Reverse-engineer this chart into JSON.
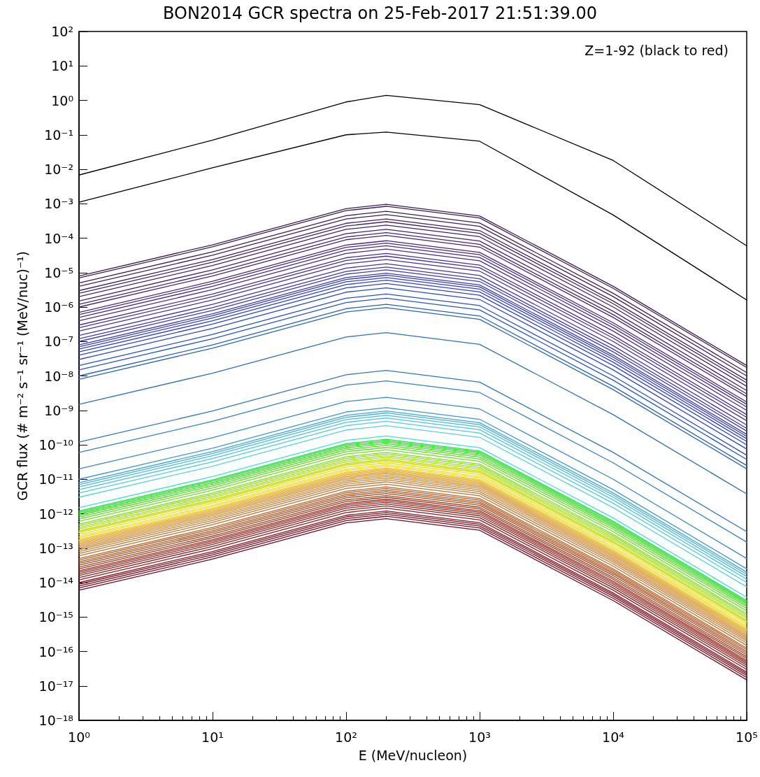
{
  "chart_data": {
    "type": "line",
    "title": "BON2014 GCR spectra on 25-Feb-2017 21:51:39.00",
    "xlabel": "E (MeV/nucleon)",
    "ylabel": "GCR flux (# m⁻² s⁻¹ sr⁻¹ (MeV/nuc)⁻¹)",
    "annotations": [
      "Z=1-92 (black to red)"
    ],
    "log": "xy",
    "grid": false,
    "marker": "none",
    "line_style": "solid",
    "x": [
      1,
      10,
      100,
      200,
      1000,
      10000,
      100000
    ],
    "xlim": [
      1,
      100000
    ],
    "xticks": [
      {
        "value": 1,
        "label": "10⁰"
      },
      {
        "value": 10,
        "label": "10¹"
      },
      {
        "value": 100,
        "label": "10²"
      },
      {
        "value": 1000,
        "label": "10³"
      },
      {
        "value": 10000,
        "label": "10⁴"
      },
      {
        "value": 100000,
        "label": "10⁵"
      }
    ],
    "ylim": [
      1e-18,
      100
    ],
    "yticks": [
      {
        "value": 1e-18,
        "label": "10⁻¹⁸"
      },
      {
        "value": 1e-17,
        "label": "10⁻¹⁷"
      },
      {
        "value": 1e-16,
        "label": "10⁻¹⁶"
      },
      {
        "value": 1e-15,
        "label": "10⁻¹⁵"
      },
      {
        "value": 1e-14,
        "label": "10⁻¹⁴"
      },
      {
        "value": 1e-13,
        "label": "10⁻¹³"
      },
      {
        "value": 1e-12,
        "label": "10⁻¹²"
      },
      {
        "value": 1e-11,
        "label": "10⁻¹¹"
      },
      {
        "value": 1e-10,
        "label": "10⁻¹⁰"
      },
      {
        "value": 1e-09,
        "label": "10⁻⁹"
      },
      {
        "value": 1e-08,
        "label": "10⁻⁸"
      },
      {
        "value": 1e-07,
        "label": "10⁻⁷"
      },
      {
        "value": 1e-06,
        "label": "10⁻⁶"
      },
      {
        "value": 1e-05,
        "label": "10⁻⁵"
      },
      {
        "value": 0.0001,
        "label": "10⁻⁴"
      },
      {
        "value": 0.001,
        "label": "10⁻³"
      },
      {
        "value": 0.01,
        "label": "10⁻²"
      },
      {
        "value": 0.1,
        "label": "10⁻¹"
      },
      {
        "value": 1,
        "label": "10⁰"
      },
      {
        "value": 10,
        "label": "10¹"
      },
      {
        "value": 100,
        "label": "10²"
      }
    ],
    "series": [
      {
        "color": "#000000",
        "values": [
          0.0068,
          0.07,
          0.9,
          1.4,
          0.75,
          0.018,
          6e-05
        ]
      },
      {
        "color": "#000000",
        "values": [
          0.0011,
          0.011,
          0.1,
          0.12,
          0.065,
          0.00047,
          1.6e-06
        ]
      },
      {
        "color": "#3c1e50",
        "values": [
          8e-06,
          6.4e-05,
          0.00072,
          0.00096,
          0.00044,
          4e-06,
          2e-08
        ]
      },
      {
        "color": "#3e1f55",
        "values": [
          7e-06,
          5.6e-05,
          0.00063,
          0.00084,
          0.000385,
          3.5e-06,
          1.75e-08
        ]
      },
      {
        "color": "#40205a",
        "values": [
          5e-06,
          4e-05,
          0.00045,
          0.0006,
          0.000275,
          2.5e-06,
          1.25e-08
        ]
      },
      {
        "color": "#42215f",
        "values": [
          4e-06,
          3.2e-05,
          0.00036,
          0.00048,
          0.00022,
          2e-06,
          1e-08
        ]
      },
      {
        "color": "#442264",
        "values": [
          3e-06,
          2.4e-05,
          0.00027,
          0.00036,
          0.000165,
          1.5e-06,
          7.5e-09
        ]
      },
      {
        "color": "#452369",
        "values": [
          2.5e-06,
          2e-05,
          0.000225,
          0.0003,
          0.0001375,
          1.25e-06,
          6.25e-09
        ]
      },
      {
        "color": "#46246e",
        "values": [
          2e-06,
          1.6e-05,
          0.00018,
          0.00024,
          0.00011,
          1e-06,
          5e-09
        ]
      },
      {
        "color": "#472573",
        "values": [
          1.5e-06,
          1.2e-05,
          0.000135,
          0.00018,
          8.25e-05,
          7.5e-07,
          3.75e-09
        ]
      },
      {
        "color": "#482678",
        "values": [
          1.2e-06,
          9.6e-06,
          0.000108,
          0.000144,
          6.6e-05,
          6e-07,
          3e-09
        ]
      },
      {
        "color": "#49277d",
        "values": [
          1e-06,
          8e-06,
          9e-05,
          0.00012,
          5.5e-05,
          5e-07,
          2.5e-09
        ]
      },
      {
        "color": "#4a2882",
        "values": [
          7e-07,
          5.6e-06,
          6.3e-05,
          8.4e-05,
          3.85e-05,
          3.5e-07,
          1.75e-09
        ]
      },
      {
        "color": "#4a2a88",
        "values": [
          6e-07,
          4.8e-06,
          5.4e-05,
          7.2e-05,
          3.3e-05,
          3e-07,
          1.5e-09
        ]
      },
      {
        "color": "#4a2c8e",
        "values": [
          5e-07,
          4e-06,
          4.5e-05,
          6e-05,
          2.75e-05,
          2.5e-07,
          1.25e-09
        ]
      },
      {
        "color": "#4a2e94",
        "values": [
          4e-07,
          3.2e-06,
          3.6e-05,
          4.8e-05,
          2.2e-05,
          2e-07,
          1e-09
        ]
      },
      {
        "color": "#4a309a",
        "values": [
          3e-07,
          2.4e-06,
          2.7e-05,
          3.6e-05,
          1.65e-05,
          1.5e-07,
          7.5e-10
        ]
      },
      {
        "color": "#4832a0",
        "values": [
          2.5e-07,
          2e-06,
          2.25e-05,
          3e-05,
          1.375e-05,
          1.25e-07,
          6.25e-10
        ]
      },
      {
        "color": "#4634a6",
        "values": [
          2e-07,
          1.6e-06,
          1.8e-05,
          2.4e-05,
          1.1e-05,
          1e-07,
          5e-10
        ]
      },
      {
        "color": "#4436ac",
        "values": [
          1.5e-07,
          1.2e-06,
          1.35e-05,
          1.8e-05,
          8.25e-06,
          7.5e-08,
          3.75e-10
        ]
      },
      {
        "color": "#4238b2",
        "values": [
          1.2e-07,
          9.6e-07,
          1.08e-05,
          1.44e-05,
          6.6e-06,
          6e-08,
          3e-10
        ]
      },
      {
        "color": "#403ab8",
        "values": [
          1e-07,
          8e-07,
          9e-06,
          1.2e-05,
          5.5e-06,
          5e-08,
          2.5e-10
        ]
      },
      {
        "color": "#3c3cbe",
        "values": [
          8e-08,
          6.4e-07,
          7.2e-06,
          9.6e-06,
          4.4e-06,
          4e-08,
          2e-10
        ]
      },
      {
        "color": "#383ec4",
        "values": [
          7e-08,
          5.6e-07,
          6.3e-06,
          8.4e-06,
          3.85e-06,
          3.5e-08,
          1.75e-10
        ]
      },
      {
        "color": "#3440ca",
        "values": [
          6e-08,
          4.8e-07,
          5.4e-06,
          7.2e-06,
          3.3e-06,
          3e-08,
          1.5e-10
        ]
      },
      {
        "color": "#3042d0",
        "values": [
          5e-08,
          4e-07,
          4.5e-06,
          6e-06,
          2.75e-06,
          2.5e-08,
          1.25e-10
        ]
      },
      {
        "color": "#2c44d4",
        "values": [
          4e-08,
          3.2e-07,
          3.6e-06,
          4.8e-06,
          2.2e-06,
          2e-08,
          1e-10
        ]
      },
      {
        "color": "#2848d8",
        "values": [
          3e-08,
          2.4e-07,
          2.7e-06,
          3.6e-06,
          1.65e-06,
          1.5e-08,
          7.5e-11
        ]
      },
      {
        "color": "#2850d0",
        "values": [
          2e-08,
          1.6e-07,
          1.8e-06,
          2.4e-06,
          1.1e-06,
          1e-08,
          5e-11
        ]
      },
      {
        "color": "#2858c8",
        "values": [
          1.5e-08,
          1.2e-07,
          1.35e-06,
          1.8e-06,
          8.25e-07,
          7.5e-09,
          3.75e-11
        ]
      },
      {
        "color": "#2860c0",
        "values": [
          1e-08,
          8e-08,
          9e-07,
          1.2e-06,
          5.5e-07,
          5e-09,
          2.5e-11
        ]
      },
      {
        "color": "#2868c0",
        "values": [
          8e-09,
          6.4e-08,
          7.2e-07,
          9.6e-07,
          4.4e-07,
          4e-09,
          2e-11
        ]
      },
      {
        "color": "#2c70c0",
        "values": [
          1.5e-09,
          1.2e-08,
          1.35e-07,
          1.8e-07,
          8.25e-08,
          7.5e-10,
          3.75e-12
        ]
      },
      {
        "color": "#3078c4",
        "values": [
          1.2e-10,
          9.6e-10,
          1.08e-08,
          1.44e-08,
          6.6e-09,
          6e-11,
          3e-13
        ]
      },
      {
        "color": "#3480c8",
        "values": [
          6e-11,
          4.8e-10,
          5.4e-09,
          7.2e-09,
          3.3e-09,
          3e-11,
          1.5e-13
        ]
      },
      {
        "color": "#3888cc",
        "values": [
          2e-11,
          1.6e-10,
          1.8e-09,
          2.4e-09,
          1.1e-09,
          1e-11,
          5e-14
        ]
      },
      {
        "color": "#3c98d8",
        "values": [
          1e-11,
          8e-11,
          9e-10,
          1.2e-09,
          5.5e-10,
          5e-12,
          2.5e-14
        ]
      },
      {
        "color": "#40a4dc",
        "values": [
          8e-12,
          6.4e-11,
          7.2e-10,
          9.6e-10,
          4.4e-10,
          4e-12,
          2e-14
        ]
      },
      {
        "color": "#44b0e0",
        "values": [
          7e-12,
          5.6e-11,
          6.3e-10,
          8.4e-10,
          3.85e-10,
          3.5e-12,
          1.75e-14
        ]
      },
      {
        "color": "#48bce0",
        "values": [
          6e-12,
          4.8e-11,
          5.4e-10,
          7.2e-10,
          3.3e-10,
          3e-12,
          1.5e-14
        ]
      },
      {
        "color": "#4cc4e0",
        "values": [
          5e-12,
          4e-11,
          4.5e-10,
          6e-10,
          2.75e-10,
          2.5e-12,
          1.25e-14
        ]
      },
      {
        "color": "#50cce0",
        "values": [
          4e-12,
          3.2e-11,
          3.6e-10,
          4.8e-10,
          2.2e-10,
          2e-12,
          1e-14
        ]
      },
      {
        "color": "#54d4e0",
        "values": [
          3e-12,
          2.4e-11,
          2.7e-10,
          3.6e-10,
          1.65e-10,
          1.5e-12,
          7.5e-15
        ]
      },
      {
        "color": "#40e0d8",
        "values": [
          1.5e-12,
          1.2e-11,
          1.35e-10,
          1.8e-10,
          8.25e-11,
          7.5e-13,
          3.75e-15
        ]
      },
      {
        "color": "#20e040",
        "values": [
          1.2e-12,
          9.6e-12,
          1.08e-10,
          1.44e-10,
          6.6e-11,
          6e-13,
          3e-15
        ]
      },
      {
        "color": "#28e030",
        "values": [
          1.1e-12,
          8.8e-12,
          9.9e-11,
          1.32e-10,
          6.05e-11,
          5.5e-13,
          2.75e-15
        ]
      },
      {
        "color": "#30e020",
        "values": [
          1e-12,
          8e-12,
          9e-11,
          1.2e-10,
          5.5e-11,
          5e-13,
          2.5e-15
        ]
      },
      {
        "color": "#40e020",
        "values": [
          9e-13,
          7.2e-12,
          8.1e-11,
          1.08e-10,
          4.95e-11,
          4.5e-13,
          2.25e-15
        ]
      },
      {
        "color": "#50e020",
        "values": [
          8e-13,
          6.4e-12,
          7.2e-11,
          9.6e-11,
          4.4e-11,
          4e-13,
          2e-15
        ]
      },
      {
        "color": "#60e020",
        "values": [
          7e-13,
          5.6e-12,
          6.3e-11,
          8.4e-11,
          3.85e-11,
          3.5e-13,
          1.75e-15
        ]
      },
      {
        "color": "#70e020",
        "values": [
          6e-13,
          4.8e-12,
          5.4e-11,
          7.2e-11,
          3.3e-11,
          3e-13,
          1.5e-15
        ]
      },
      {
        "color": "#80e020",
        "values": [
          5e-13,
          4e-12,
          4.5e-11,
          6e-11,
          2.75e-11,
          2.5e-13,
          1.25e-15
        ]
      },
      {
        "color": "#90e020",
        "values": [
          4.5e-13,
          3.6e-12,
          4.05e-11,
          5.4e-11,
          2.475e-11,
          2.25e-13,
          1.125e-15
        ]
      },
      {
        "color": "#a0e020",
        "values": [
          4e-13,
          3.2e-12,
          3.6e-11,
          4.8e-11,
          2.2e-11,
          2e-13,
          1e-15
        ]
      },
      {
        "color": "#b0e020",
        "values": [
          3.6e-13,
          2.88e-12,
          3.24e-11,
          4.32e-11,
          1.98e-11,
          1.8e-13,
          9e-16
        ]
      },
      {
        "color": "#c0e020",
        "values": [
          3.2e-13,
          2.56e-12,
          2.88e-11,
          3.84e-11,
          1.76e-11,
          1.6e-13,
          8e-16
        ]
      },
      {
        "color": "#d0e020",
        "values": [
          3e-13,
          2.4e-12,
          2.7e-11,
          3.6e-11,
          1.65e-11,
          1.5e-13,
          7.5e-16
        ]
      },
      {
        "color": "#e0e020",
        "values": [
          2.8e-13,
          2.24e-12,
          2.52e-11,
          3.36e-11,
          1.54e-11,
          1.4e-13,
          7e-16
        ]
      },
      {
        "color": "#e8e020",
        "values": [
          2.5e-13,
          2e-12,
          2.25e-11,
          3e-11,
          1.375e-11,
          1.25e-13,
          6.25e-16
        ]
      },
      {
        "color": "#f0e028",
        "values": [
          2.2e-13,
          1.76e-12,
          1.98e-11,
          2.64e-11,
          1.21e-11,
          1.1e-13,
          5.5e-16
        ]
      },
      {
        "color": "#f0d830",
        "values": [
          2e-13,
          1.6e-12,
          1.8e-11,
          2.4e-11,
          1.1e-11,
          1e-13,
          5e-16
        ]
      },
      {
        "color": "#f0d038",
        "values": [
          1.8e-13,
          1.44e-12,
          1.62e-11,
          2.16e-11,
          9.9e-12,
          9e-14,
          4.5e-16
        ]
      },
      {
        "color": "#f0c840",
        "values": [
          1.7e-13,
          1.36e-12,
          1.53e-11,
          2.04e-11,
          9.35e-12,
          8.5e-14,
          4.25e-16
        ]
      },
      {
        "color": "#e8c048",
        "values": [
          1.6e-13,
          1.28e-12,
          1.44e-11,
          1.92e-11,
          8.8e-12,
          8e-14,
          4e-16
        ]
      },
      {
        "color": "#e0b850",
        "values": [
          1.5e-13,
          1.2e-12,
          1.35e-11,
          1.8e-11,
          8.25e-12,
          7.5e-14,
          3.75e-16
        ]
      },
      {
        "color": "#e0b050",
        "values": [
          1.4e-13,
          1.12e-12,
          1.26e-11,
          1.68e-11,
          7.7e-12,
          7e-14,
          3.5e-16
        ]
      },
      {
        "color": "#dca84c",
        "values": [
          1.3e-13,
          1.04e-12,
          1.17e-11,
          1.56e-11,
          7.15e-12,
          6.5e-14,
          3.25e-16
        ]
      },
      {
        "color": "#d8a048",
        "values": [
          1.2e-13,
          9.6e-13,
          1.08e-11,
          1.44e-11,
          6.6e-12,
          6e-14,
          3e-16
        ]
      },
      {
        "color": "#d49844",
        "values": [
          1.1e-13,
          8.8e-13,
          9.9e-12,
          1.32e-11,
          6.05e-12,
          5.5e-14,
          2.75e-16
        ]
      },
      {
        "color": "#d09040",
        "values": [
          1e-13,
          8e-13,
          9e-12,
          1.2e-11,
          5.5e-12,
          5e-14,
          2.5e-16
        ]
      },
      {
        "color": "#cc883c",
        "values": [
          9e-14,
          7.2e-13,
          8.1e-12,
          1.08e-11,
          4.95e-12,
          4.5e-14,
          2.25e-16
        ]
      },
      {
        "color": "#c88038",
        "values": [
          8e-14,
          6.4e-13,
          7.2e-12,
          9.6e-12,
          4.4e-12,
          4e-14,
          2e-16
        ]
      },
      {
        "color": "#c47834",
        "values": [
          7e-14,
          5.6e-13,
          6.3e-12,
          8.4e-12,
          3.85e-12,
          3.5e-14,
          1.75e-16
        ]
      },
      {
        "color": "#c07030",
        "values": [
          6e-14,
          4.8e-13,
          5.4e-12,
          7.2e-12,
          3.3e-12,
          3e-14,
          1.5e-16
        ]
      },
      {
        "color": "#bc682c",
        "values": [
          5e-14,
          4e-13,
          4.5e-12,
          6e-12,
          2.75e-12,
          2.5e-14,
          1.25e-16
        ]
      },
      {
        "color": "#b86028",
        "values": [
          4.5e-14,
          3.6e-13,
          4.05e-12,
          5.4e-12,
          2.475e-12,
          2.25e-14,
          1.125e-16
        ]
      },
      {
        "color": "#b45824",
        "values": [
          4e-14,
          3.2e-13,
          3.6e-12,
          4.8e-12,
          2.2e-12,
          2e-14,
          1e-16
        ]
      },
      {
        "color": "#b05020",
        "values": [
          3.6e-14,
          2.88e-13,
          3.24e-12,
          4.32e-12,
          1.98e-12,
          1.8e-14,
          9e-17
        ]
      },
      {
        "color": "#ac4820",
        "values": [
          3.2e-14,
          2.56e-13,
          2.88e-12,
          3.84e-12,
          1.76e-12,
          1.6e-14,
          8e-17
        ]
      },
      {
        "color": "#a84020",
        "values": [
          2.8e-14,
          2.24e-13,
          2.52e-12,
          3.36e-12,
          1.54e-12,
          1.4e-14,
          7e-17
        ]
      },
      {
        "color": "#a43820",
        "values": [
          2.5e-14,
          2e-13,
          2.25e-12,
          3e-12,
          1.375e-12,
          1.25e-14,
          6.25e-17
        ]
      },
      {
        "color": "#a03020",
        "values": [
          2.2e-14,
          1.76e-13,
          1.98e-12,
          2.64e-12,
          1.21e-12,
          1.1e-14,
          5.5e-17
        ]
      },
      {
        "color": "#9c2c20",
        "values": [
          2e-14,
          1.6e-13,
          1.8e-12,
          2.4e-12,
          1.1e-12,
          1e-14,
          5e-17
        ]
      },
      {
        "color": "#982820",
        "values": [
          1.8e-14,
          1.44e-13,
          1.62e-12,
          2.16e-12,
          9.9e-13,
          9e-15,
          4.5e-17
        ]
      },
      {
        "color": "#942420",
        "values": [
          1.6e-14,
          1.28e-13,
          1.44e-12,
          1.92e-12,
          8.8e-13,
          8e-15,
          4e-17
        ]
      },
      {
        "color": "#902020",
        "values": [
          1.4e-14,
          1.12e-13,
          1.26e-12,
          1.68e-12,
          7.7e-13,
          7e-15,
          3.5e-17
        ]
      },
      {
        "color": "#8c1c20",
        "values": [
          1.2e-14,
          9.6e-14,
          1.08e-12,
          1.44e-12,
          6.6e-13,
          6e-15,
          3e-17
        ]
      },
      {
        "color": "#881820",
        "values": [
          1e-14,
          8e-14,
          9e-13,
          1.2e-12,
          5.5e-13,
          5e-15,
          2.5e-17
        ]
      },
      {
        "color": "#841420",
        "values": [
          9e-15,
          7.2e-14,
          8.1e-13,
          1.08e-12,
          4.95e-13,
          4.5e-15,
          2.25e-17
        ]
      },
      {
        "color": "#801020",
        "values": [
          8e-15,
          6.4e-14,
          7.2e-13,
          9.6e-13,
          4.4e-13,
          4e-15,
          2e-17
        ]
      },
      {
        "color": "#7c0c20",
        "values": [
          7e-15,
          5.6e-14,
          6.3e-13,
          8.4e-13,
          3.85e-13,
          3.5e-15,
          1.75e-17
        ]
      },
      {
        "color": "#780820",
        "values": [
          6e-15,
          4.8e-14,
          5.4e-13,
          7.2e-13,
          3.3e-13,
          3e-15,
          1.5e-17
        ]
      }
    ]
  }
}
